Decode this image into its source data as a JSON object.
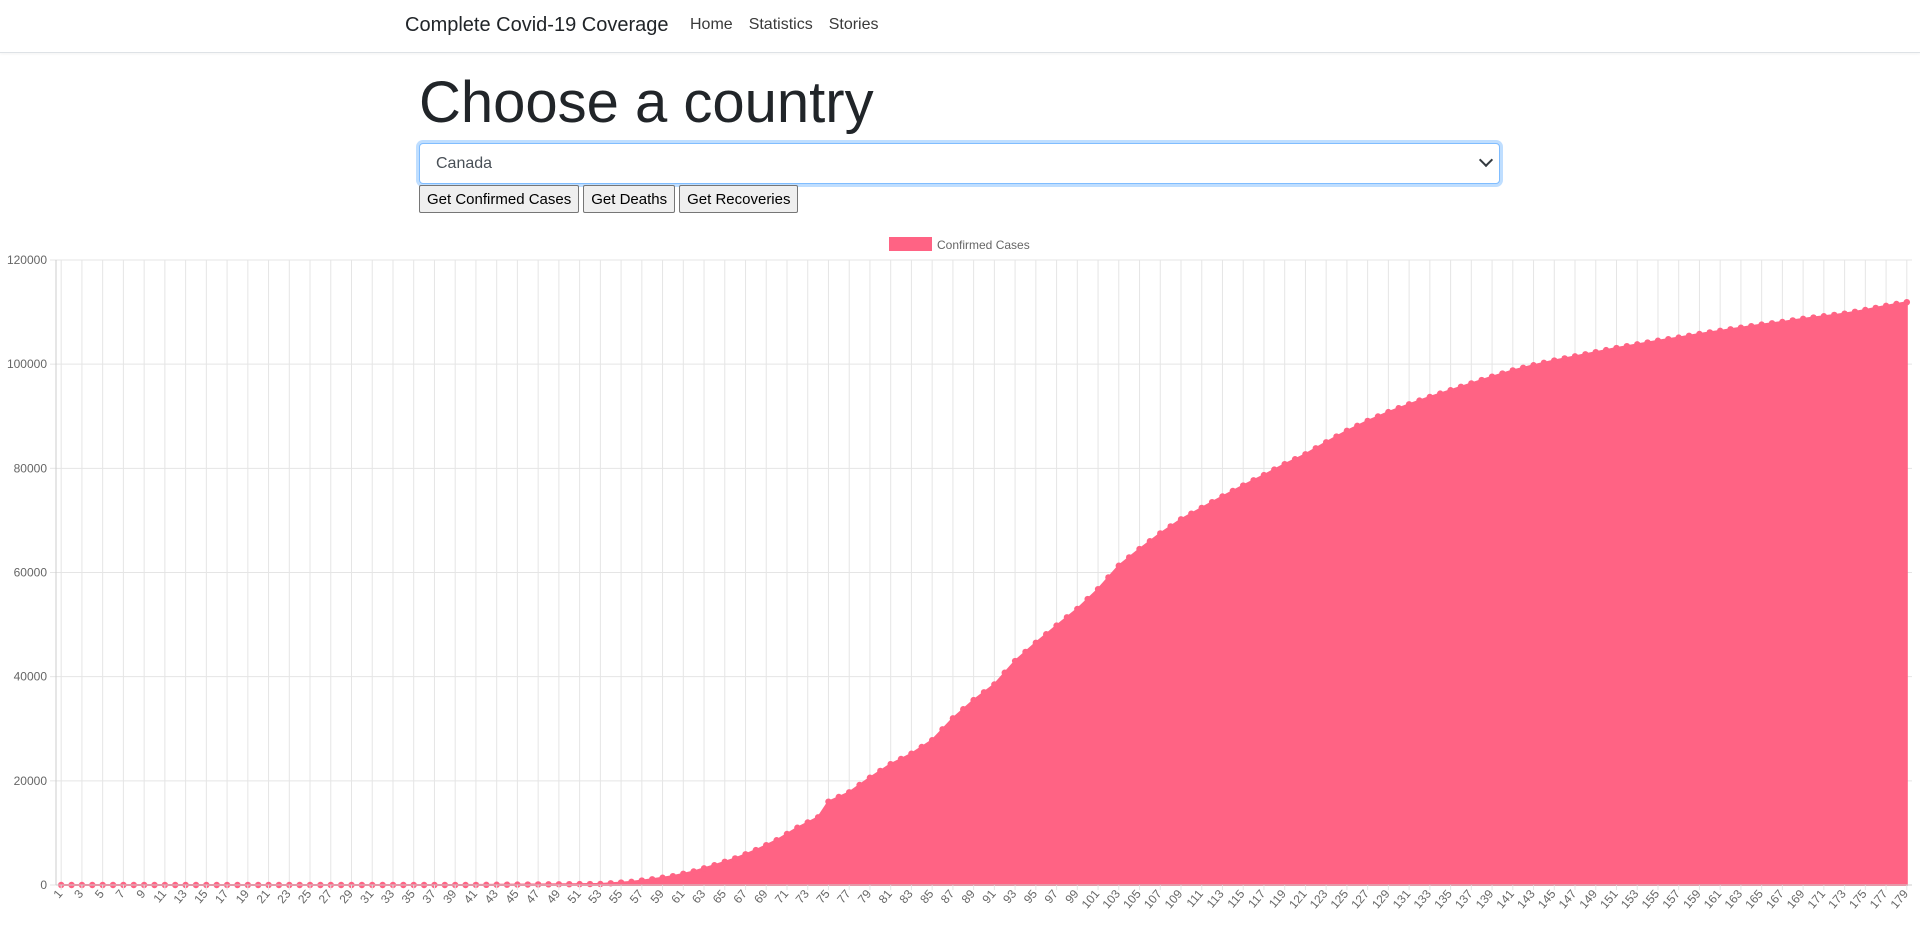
{
  "navbar": {
    "brand": "Complete Covid-19 Coverage",
    "links": [
      "Home",
      "Statistics",
      "Stories"
    ]
  },
  "main": {
    "title": "Choose a country",
    "country_select": {
      "selected": "Canada"
    },
    "buttons": {
      "confirmed": "Get Confirmed Cases",
      "deaths": "Get Deaths",
      "recoveries": "Get Recoveries"
    }
  },
  "colors": {
    "series_fill": "#ff6384",
    "grid": "#e5e5e5",
    "tick_text": "#666666"
  },
  "chart_data": {
    "type": "area",
    "legend_position": "top",
    "grid": true,
    "ylim": [
      0,
      120000
    ],
    "y_ticks": [
      0,
      20000,
      40000,
      60000,
      80000,
      100000,
      120000
    ],
    "x": {
      "start": 1,
      "end": 179,
      "label_every": 2
    },
    "series": [
      {
        "name": "Confirmed Cases",
        "anchors": [
          [
            1,
            0
          ],
          [
            20,
            0
          ],
          [
            40,
            0
          ],
          [
            53,
            200
          ],
          [
            56,
            600
          ],
          [
            58,
            1100
          ],
          [
            60,
            1700
          ],
          [
            62,
            2600
          ],
          [
            64,
            3800
          ],
          [
            66,
            5100
          ],
          [
            68,
            6700
          ],
          [
            70,
            8600
          ],
          [
            72,
            11000
          ],
          [
            74,
            13000
          ],
          [
            75,
            16000
          ],
          [
            77,
            17800
          ],
          [
            79,
            20600
          ],
          [
            81,
            23200
          ],
          [
            83,
            25200
          ],
          [
            85,
            27800
          ],
          [
            87,
            32000
          ],
          [
            89,
            35500
          ],
          [
            91,
            38500
          ],
          [
            93,
            43000
          ],
          [
            95,
            46500
          ],
          [
            97,
            49800
          ],
          [
            99,
            53000
          ],
          [
            101,
            56800
          ],
          [
            103,
            61300
          ],
          [
            105,
            64500
          ],
          [
            107,
            67500
          ],
          [
            109,
            70200
          ],
          [
            111,
            72400
          ],
          [
            113,
            74600
          ],
          [
            115,
            76700
          ],
          [
            117,
            78700
          ],
          [
            119,
            80800
          ],
          [
            121,
            82700
          ],
          [
            123,
            85000
          ],
          [
            125,
            87200
          ],
          [
            127,
            89100
          ],
          [
            129,
            90800
          ],
          [
            131,
            92300
          ],
          [
            133,
            93700
          ],
          [
            135,
            95000
          ],
          [
            137,
            96300
          ],
          [
            139,
            97600
          ],
          [
            141,
            98800
          ],
          [
            143,
            99800
          ],
          [
            145,
            100700
          ],
          [
            147,
            101500
          ],
          [
            149,
            102300
          ],
          [
            151,
            103100
          ],
          [
            153,
            103800
          ],
          [
            155,
            104500
          ],
          [
            157,
            105100
          ],
          [
            159,
            105800
          ],
          [
            161,
            106400
          ],
          [
            163,
            107000
          ],
          [
            165,
            107600
          ],
          [
            167,
            108100
          ],
          [
            169,
            108700
          ],
          [
            171,
            109200
          ],
          [
            173,
            109700
          ],
          [
            175,
            110400
          ],
          [
            177,
            111200
          ],
          [
            179,
            111900
          ]
        ]
      }
    ]
  }
}
